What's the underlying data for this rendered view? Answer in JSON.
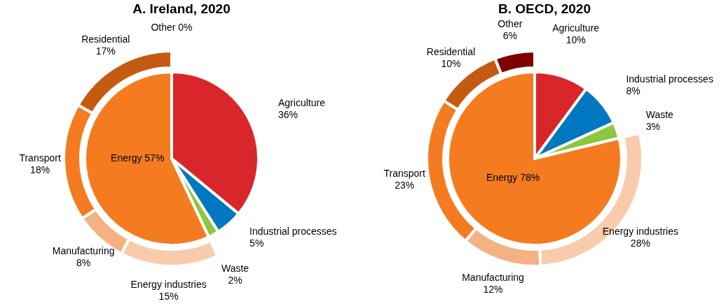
{
  "chart_data": [
    {
      "type": "pie",
      "title": "A. Ireland, 2020",
      "categories": [
        "Agriculture",
        "Industrial processes",
        "Waste",
        "Energy"
      ],
      "values": [
        36,
        5,
        2,
        57
      ],
      "colors": [
        "#d9262b",
        "#0077c0",
        "#8dc63f",
        "#f47b20"
      ],
      "value_labels": [
        "36%",
        "5%",
        "2%",
        "57%"
      ]
    },
    {
      "type": "donut",
      "categories": [
        "Energy industries",
        "Manufacturing",
        "Transport",
        "Residential",
        "Other"
      ],
      "values": [
        15,
        8,
        18,
        17,
        0
      ],
      "colors": [
        "#f8cbad",
        "#f4b183",
        "#f47b20",
        "#c55a11",
        "#7f0000"
      ],
      "value_labels": [
        "15%",
        "8%",
        "18%",
        "17%",
        "0%"
      ]
    },
    {
      "type": "pie",
      "title": "B. OECD, 2020",
      "categories": [
        "Agriculture",
        "Industrial processes",
        "Waste",
        "Energy"
      ],
      "values": [
        10,
        8,
        3,
        78
      ],
      "colors": [
        "#d9262b",
        "#0077c0",
        "#8dc63f",
        "#f47b20"
      ],
      "value_labels": [
        "10%",
        "8%",
        "3%",
        "78%"
      ]
    },
    {
      "type": "donut",
      "categories": [
        "Energy industries",
        "Manufacturing",
        "Transport",
        "Residential",
        "Other"
      ],
      "values": [
        28,
        12,
        23,
        10,
        6
      ],
      "colors": [
        "#f8cbad",
        "#f4b183",
        "#f47b20",
        "#c55a11",
        "#7f0000"
      ],
      "value_labels": [
        "28%",
        "12%",
        "23%",
        "10%",
        "6%"
      ]
    }
  ]
}
